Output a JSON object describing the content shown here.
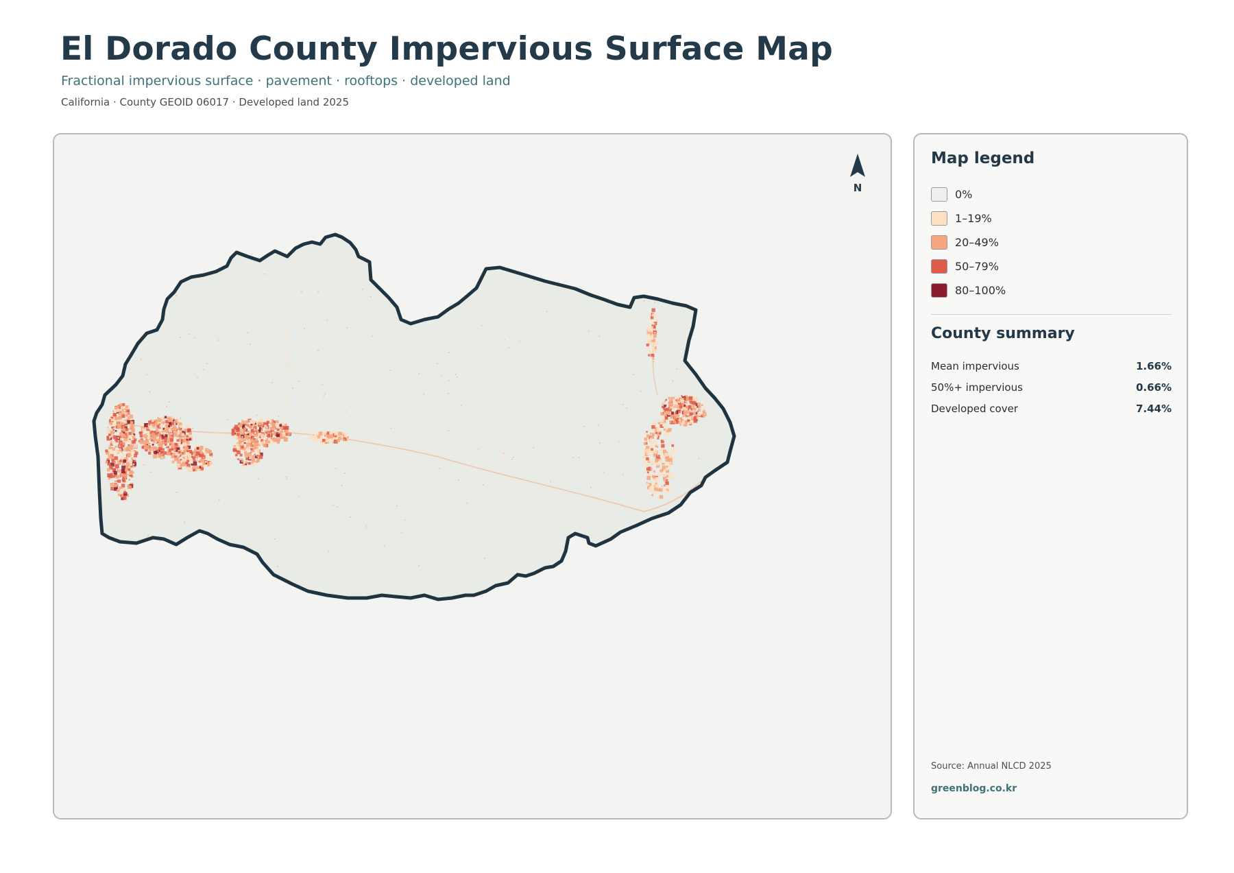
{
  "header": {
    "title": "El Dorado County Impervious Surface Map",
    "subtitle": "Fractional impervious surface · pavement · rooftops · developed land",
    "meta": "California · County GEOID 06017 · Developed land 2025"
  },
  "map": {
    "north_label": "N",
    "land_color": "#e9ebe6",
    "boundary_color": "#1f3440"
  },
  "legend": {
    "title": "Map legend",
    "items": [
      {
        "label": "0%",
        "color": "#efefed"
      },
      {
        "label": "1–19%",
        "color": "#fde0c1"
      },
      {
        "label": "20–49%",
        "color": "#f5a67f"
      },
      {
        "label": "50–79%",
        "color": "#de5b4b"
      },
      {
        "label": "80–100%",
        "color": "#8d1b30"
      }
    ]
  },
  "summary": {
    "title": "County summary",
    "stats": [
      {
        "label": "Mean impervious",
        "value": "1.66%"
      },
      {
        "label": "50%+ impervious",
        "value": "0.66%"
      },
      {
        "label": "Developed cover",
        "value": "7.44%"
      }
    ]
  },
  "footer": {
    "source": "Source: Annual NLCD 2025",
    "site": "greenblog.co.kr"
  }
}
